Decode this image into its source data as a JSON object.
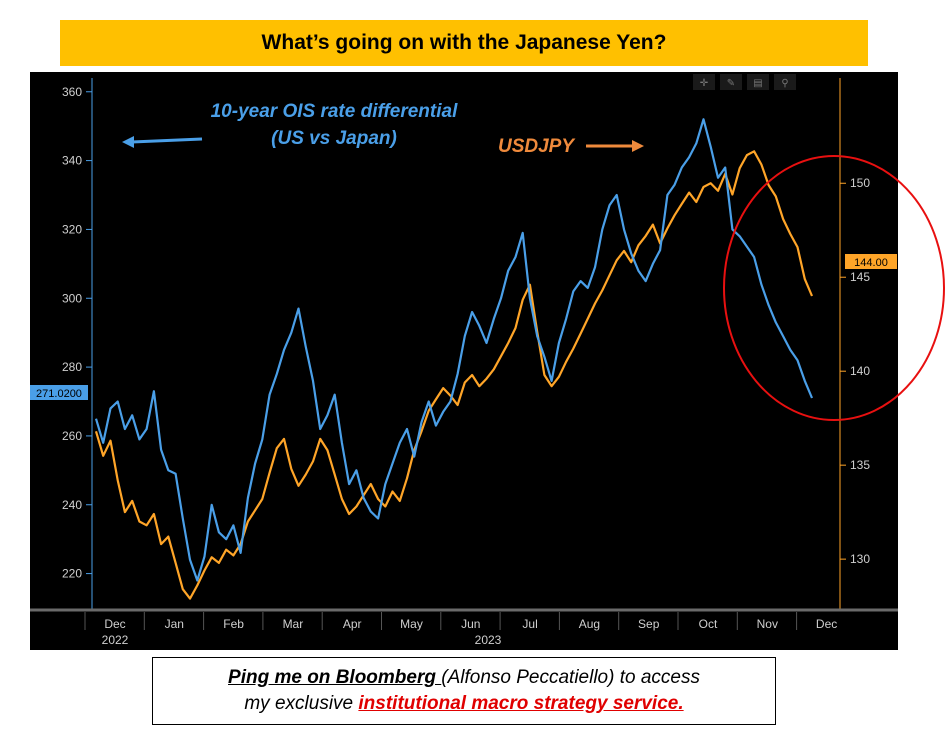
{
  "title": "What’s going on with the Japanese Yen?",
  "chart_data": {
    "type": "line",
    "x_ticks": [
      "Dec",
      "Jan",
      "Feb",
      "Mar",
      "Apr",
      "May",
      "Jun",
      "Jul",
      "Aug",
      "Sep",
      "Oct",
      "Nov",
      "Dec"
    ],
    "x_years": [
      "2022",
      "2023"
    ],
    "left_axis": {
      "ticks": [
        220,
        240,
        260,
        280,
        300,
        320,
        340,
        360
      ],
      "range": [
        210,
        364
      ],
      "last_value": "271.0200"
    },
    "right_axis": {
      "ticks": [
        130,
        135,
        140,
        145,
        150
      ],
      "range": [
        127.4,
        155.6
      ],
      "last_value": "144.00"
    },
    "annotations": {
      "ois_label_line1": "10-year OIS rate differential",
      "ois_label_line2": "(US vs Japan)",
      "usdjpy_label": "USDJPY"
    },
    "series": [
      {
        "name": "10-year OIS rate differential (US vs Japan)",
        "axis": "left",
        "color": "#4a9fe8",
        "points": [
          [
            0,
            265
          ],
          [
            1,
            258
          ],
          [
            2,
            268
          ],
          [
            3,
            270
          ],
          [
            4,
            262
          ],
          [
            5,
            266
          ],
          [
            6,
            259
          ],
          [
            7,
            262
          ],
          [
            8,
            273
          ],
          [
            9,
            256
          ],
          [
            10,
            250
          ],
          [
            11,
            249
          ],
          [
            12,
            236
          ],
          [
            13,
            224
          ],
          [
            14,
            218
          ],
          [
            15,
            225
          ],
          [
            16,
            240
          ],
          [
            17,
            232
          ],
          [
            18,
            230
          ],
          [
            19,
            234
          ],
          [
            20,
            226
          ],
          [
            21,
            242
          ],
          [
            22,
            252
          ],
          [
            23,
            259
          ],
          [
            24,
            272
          ],
          [
            25,
            278
          ],
          [
            26,
            285
          ],
          [
            27,
            290
          ],
          [
            28,
            297
          ],
          [
            29,
            286
          ],
          [
            30,
            276
          ],
          [
            31,
            262
          ],
          [
            32,
            266
          ],
          [
            33,
            272
          ],
          [
            34,
            258
          ],
          [
            35,
            246
          ],
          [
            36,
            250
          ],
          [
            37,
            242
          ],
          [
            38,
            238
          ],
          [
            39,
            236
          ],
          [
            40,
            246
          ],
          [
            41,
            252
          ],
          [
            42,
            258
          ],
          [
            43,
            262
          ],
          [
            44,
            254
          ],
          [
            45,
            264
          ],
          [
            46,
            270
          ],
          [
            47,
            263
          ],
          [
            48,
            267
          ],
          [
            49,
            270
          ],
          [
            50,
            278
          ],
          [
            51,
            289
          ],
          [
            52,
            296
          ],
          [
            53,
            292
          ],
          [
            54,
            287
          ],
          [
            55,
            294
          ],
          [
            56,
            300
          ],
          [
            57,
            308
          ],
          [
            58,
            312
          ],
          [
            59,
            319
          ],
          [
            60,
            300
          ],
          [
            61,
            289
          ],
          [
            62,
            283
          ],
          [
            63,
            276
          ],
          [
            64,
            287
          ],
          [
            65,
            294
          ],
          [
            66,
            302
          ],
          [
            67,
            305
          ],
          [
            68,
            303
          ],
          [
            69,
            309
          ],
          [
            70,
            320
          ],
          [
            71,
            327
          ],
          [
            72,
            330
          ],
          [
            73,
            320
          ],
          [
            74,
            313
          ],
          [
            75,
            308
          ],
          [
            76,
            305
          ],
          [
            77,
            310
          ],
          [
            78,
            314
          ],
          [
            79,
            330
          ],
          [
            80,
            333
          ],
          [
            81,
            338
          ],
          [
            82,
            341
          ],
          [
            83,
            345
          ],
          [
            84,
            352
          ],
          [
            85,
            344
          ],
          [
            86,
            335
          ],
          [
            87,
            338
          ],
          [
            88,
            320
          ],
          [
            89,
            318
          ],
          [
            90,
            315
          ],
          [
            91,
            312
          ],
          [
            92,
            304
          ],
          [
            93,
            298
          ],
          [
            94,
            293
          ],
          [
            95,
            289
          ],
          [
            96,
            285
          ],
          [
            97,
            282
          ],
          [
            98,
            276
          ],
          [
            99,
            271.02
          ]
        ]
      },
      {
        "name": "USDJPY",
        "axis": "right",
        "color": "#ffa528",
        "points": [
          [
            0,
            136.8
          ],
          [
            1,
            135.5
          ],
          [
            2,
            136.3
          ],
          [
            3,
            134.2
          ],
          [
            4,
            132.5
          ],
          [
            5,
            133.1
          ],
          [
            6,
            132.0
          ],
          [
            7,
            131.8
          ],
          [
            8,
            132.4
          ],
          [
            9,
            130.8
          ],
          [
            10,
            131.2
          ],
          [
            11,
            129.8
          ],
          [
            12,
            128.4
          ],
          [
            13,
            127.9
          ],
          [
            14,
            128.6
          ],
          [
            15,
            129.4
          ],
          [
            16,
            130.1
          ],
          [
            17,
            129.8
          ],
          [
            18,
            130.5
          ],
          [
            19,
            130.2
          ],
          [
            20,
            130.8
          ],
          [
            21,
            132.0
          ],
          [
            22,
            132.6
          ],
          [
            23,
            133.2
          ],
          [
            24,
            134.6
          ],
          [
            25,
            135.9
          ],
          [
            26,
            136.4
          ],
          [
            27,
            134.8
          ],
          [
            28,
            133.9
          ],
          [
            29,
            134.5
          ],
          [
            30,
            135.2
          ],
          [
            31,
            136.4
          ],
          [
            32,
            135.8
          ],
          [
            33,
            134.5
          ],
          [
            34,
            133.2
          ],
          [
            35,
            132.4
          ],
          [
            36,
            132.8
          ],
          [
            37,
            133.4
          ],
          [
            38,
            134.0
          ],
          [
            39,
            133.2
          ],
          [
            40,
            132.8
          ],
          [
            41,
            133.6
          ],
          [
            42,
            133.1
          ],
          [
            43,
            134.3
          ],
          [
            44,
            135.8
          ],
          [
            45,
            136.8
          ],
          [
            46,
            137.9
          ],
          [
            47,
            138.5
          ],
          [
            48,
            139.1
          ],
          [
            49,
            138.7
          ],
          [
            50,
            138.2
          ],
          [
            51,
            139.4
          ],
          [
            52,
            139.8
          ],
          [
            53,
            139.2
          ],
          [
            54,
            139.6
          ],
          [
            55,
            140.1
          ],
          [
            56,
            140.8
          ],
          [
            57,
            141.5
          ],
          [
            58,
            142.3
          ],
          [
            59,
            143.8
          ],
          [
            60,
            144.6
          ],
          [
            61,
            142.1
          ],
          [
            62,
            139.8
          ],
          [
            63,
            139.2
          ],
          [
            64,
            139.7
          ],
          [
            65,
            140.5
          ],
          [
            66,
            141.2
          ],
          [
            67,
            142.0
          ],
          [
            68,
            142.8
          ],
          [
            69,
            143.6
          ],
          [
            70,
            144.3
          ],
          [
            71,
            145.1
          ],
          [
            72,
            145.9
          ],
          [
            73,
            146.4
          ],
          [
            74,
            145.8
          ],
          [
            75,
            146.7
          ],
          [
            76,
            147.2
          ],
          [
            77,
            147.8
          ],
          [
            78,
            146.8
          ],
          [
            79,
            147.6
          ],
          [
            80,
            148.3
          ],
          [
            81,
            148.9
          ],
          [
            82,
            149.5
          ],
          [
            83,
            149.0
          ],
          [
            84,
            149.8
          ],
          [
            85,
            150.0
          ],
          [
            86,
            149.6
          ],
          [
            87,
            150.5
          ],
          [
            88,
            149.4
          ],
          [
            89,
            150.8
          ],
          [
            90,
            151.5
          ],
          [
            91,
            151.7
          ],
          [
            92,
            151.0
          ],
          [
            93,
            149.9
          ],
          [
            94,
            149.3
          ],
          [
            95,
            148.1
          ],
          [
            96,
            147.3
          ],
          [
            97,
            146.6
          ],
          [
            98,
            144.9
          ],
          [
            99,
            144.0
          ]
        ]
      }
    ]
  },
  "footer": {
    "part1": "Ping me on Bloomberg ",
    "part2": "(Alfonso Peccatiello) to access",
    "part3": "my exclusive ",
    "part4": "institutional macro strategy service."
  }
}
